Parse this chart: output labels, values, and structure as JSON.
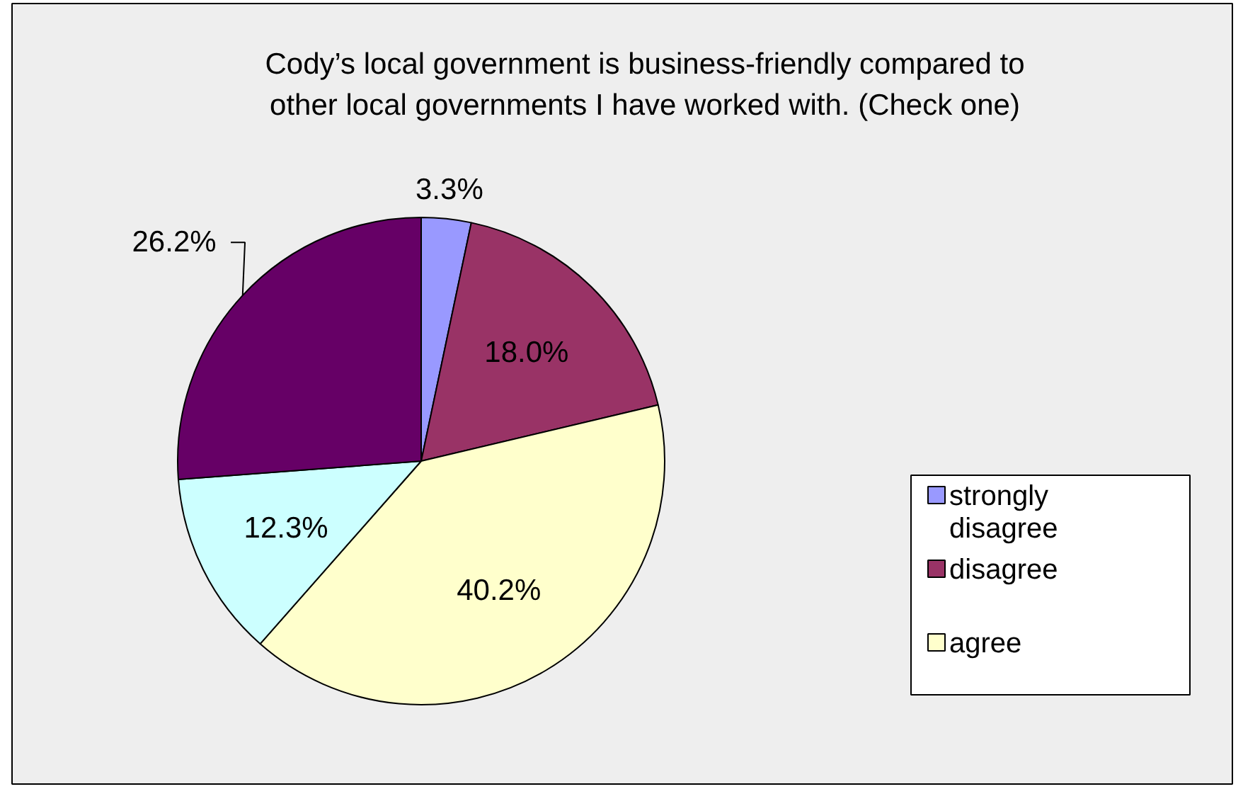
{
  "chart_data": {
    "type": "pie",
    "title": "Cody’s local government is business-friendly compared to other local governments I have worked with. (Check one)",
    "categories": [
      "strongly disagree",
      "disagree",
      "agree",
      null,
      null
    ],
    "values": [
      3.3,
      18.0,
      40.2,
      12.3,
      26.2
    ],
    "colors": [
      "#9999ff",
      "#993366",
      "#ffffcc",
      "#ccffff",
      "#660066"
    ],
    "value_labels": [
      "3.3%",
      "18.0%",
      "40.2%",
      "12.3%",
      "26.2%"
    ],
    "legend": "right"
  }
}
